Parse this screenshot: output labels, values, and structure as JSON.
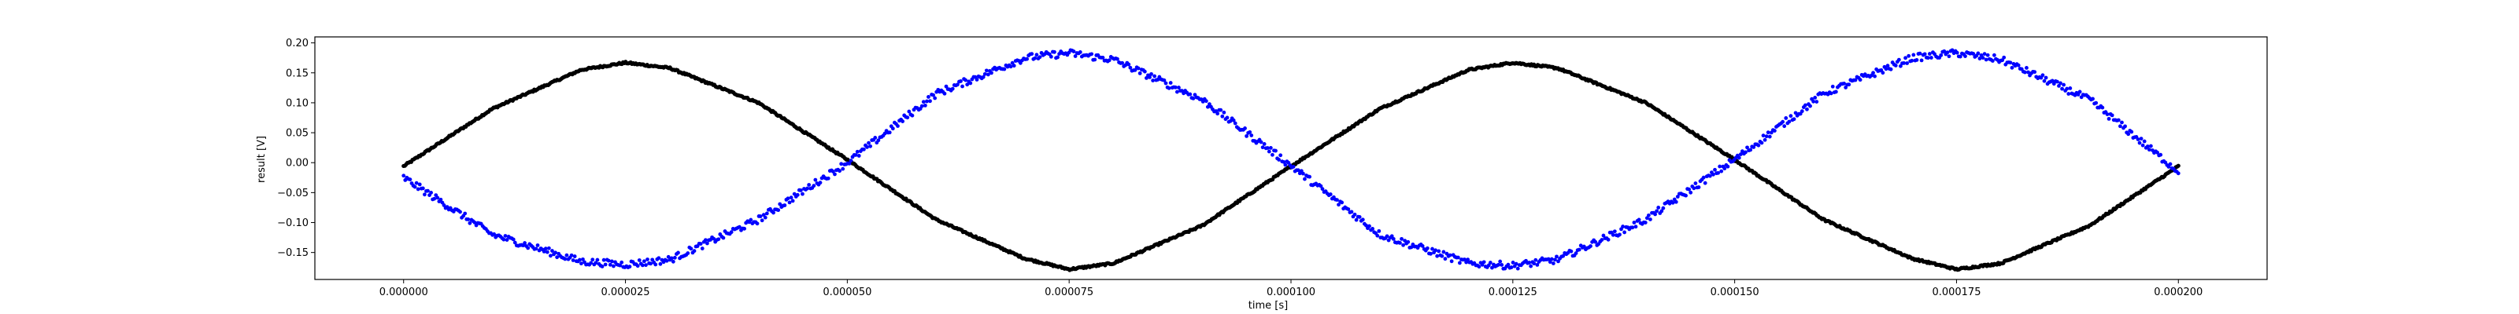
{
  "chart_data": {
    "type": "scatter",
    "title": "",
    "xlabel": "time [s]",
    "ylabel": "result [V]",
    "xlim": [
      -1e-05,
      0.00021
    ],
    "ylim": [
      -0.195,
      0.21
    ],
    "grid": false,
    "legend": "none",
    "x_ticks": [
      0.0,
      2.5e-05,
      5e-05,
      7.5e-05,
      0.0001,
      0.000125,
      0.00015,
      0.000175,
      0.0002
    ],
    "x_tick_labels": [
      "0.000000",
      "0.000025",
      "0.000050",
      "0.000075",
      "0.000100",
      "0.000125",
      "0.000150",
      "0.000175",
      "0.000200"
    ],
    "y_ticks": [
      -0.15,
      -0.1,
      -0.05,
      0.0,
      0.05,
      0.1,
      0.15,
      0.2
    ],
    "y_tick_labels": [
      "−0.15",
      "−0.10",
      "−0.05",
      "0.00",
      "0.05",
      "0.10",
      "0.15",
      "0.20"
    ],
    "series": [
      {
        "color": "#000000",
        "x": [
          0.0,
          1e-05,
          2e-05,
          2.5e-05,
          3e-05,
          4e-05,
          5e-05,
          6e-05,
          7e-05,
          7.5e-05,
          8e-05,
          9e-05,
          0.0001,
          0.00011,
          0.00012,
          0.000125,
          0.00013,
          0.00014,
          0.00015,
          0.00016,
          0.00017,
          0.000175,
          0.00018,
          0.00019,
          0.0002
        ],
        "y": [
          -0.006,
          0.09,
          0.155,
          0.167,
          0.158,
          0.1,
          0.005,
          -0.095,
          -0.16,
          -0.178,
          -0.168,
          -0.105,
          -0.006,
          0.09,
          0.155,
          0.167,
          0.158,
          0.1,
          0.005,
          -0.095,
          -0.16,
          -0.178,
          -0.168,
          -0.105,
          -0.006
        ]
      },
      {
        "color": "#0000ff",
        "x": [
          0.0,
          1e-05,
          2e-05,
          2.5e-05,
          3e-05,
          4e-05,
          5e-05,
          6e-05,
          7e-05,
          7.5e-05,
          8e-05,
          9e-05,
          0.0001,
          0.00011,
          0.00012,
          0.000125,
          0.00013,
          0.00014,
          0.00015,
          0.00016,
          0.00017,
          0.000175,
          0.00018,
          0.00019,
          0.0002
        ],
        "y": [
          -0.025,
          -0.12,
          -0.165,
          -0.17,
          -0.162,
          -0.095,
          0.0,
          0.115,
          0.175,
          0.183,
          0.172,
          0.105,
          -0.005,
          -0.12,
          -0.168,
          -0.172,
          -0.162,
          -0.095,
          0.005,
          0.115,
          0.175,
          0.183,
          0.172,
          0.105,
          -0.015
        ]
      }
    ]
  }
}
